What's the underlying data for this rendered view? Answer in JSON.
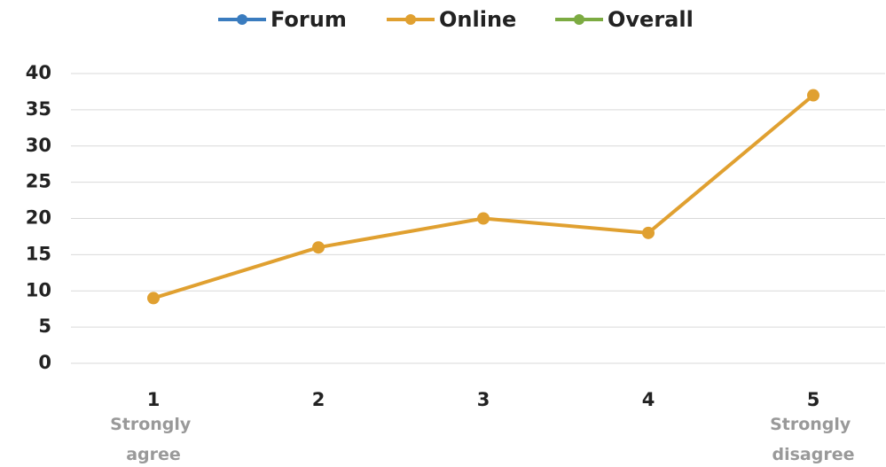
{
  "chart_data": {
    "type": "line",
    "categories": [
      "1",
      "2",
      "3",
      "4",
      "5"
    ],
    "x_low_label": "Strongly agree",
    "x_high_label": "Strongly disagree",
    "series": [
      {
        "name": "Forum",
        "color": "#3a7cbf",
        "values": [
          null,
          null,
          null,
          null,
          null
        ]
      },
      {
        "name": "Online",
        "color": "#e0a030",
        "values": [
          9,
          16,
          20,
          18,
          37
        ]
      },
      {
        "name": "Overall",
        "color": "#7cab42",
        "values": [
          null,
          null,
          null,
          null,
          null
        ]
      }
    ],
    "ylim": [
      0,
      40
    ],
    "yticks": [
      0,
      5,
      10,
      15,
      20,
      25,
      30,
      35,
      40
    ],
    "grid": true,
    "legend": "top"
  }
}
